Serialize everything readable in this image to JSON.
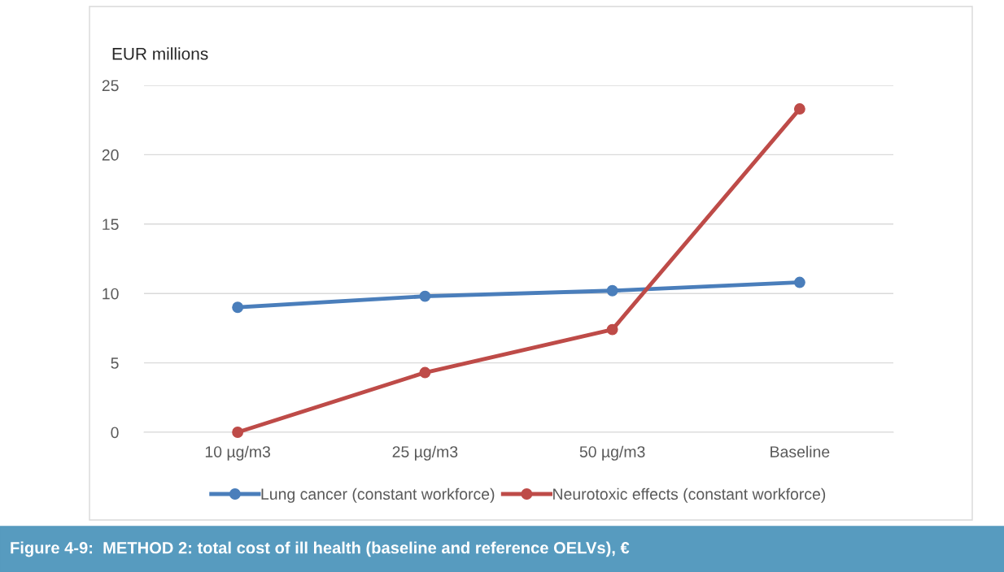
{
  "chart_data": {
    "type": "line",
    "ylabel": "EUR millions",
    "categories": [
      "10 µg/m3",
      "25 µg/m3",
      "50 µg/m3",
      "Baseline"
    ],
    "series": [
      {
        "name": "Lung cancer (constant workforce)",
        "color": "#4a7ebb",
        "values": [
          9.0,
          9.8,
          10.2,
          10.8
        ]
      },
      {
        "name": "Neurotoxic effects (constant workforce)",
        "color": "#be4b48",
        "values": [
          0.0,
          4.3,
          7.4,
          23.3
        ]
      }
    ],
    "ylim": [
      0,
      25
    ],
    "yticks": [
      0,
      5,
      10,
      15,
      20,
      25
    ],
    "grid": "y",
    "legend": "bottom",
    "marker": "circle",
    "line_style": "solid",
    "annotations": [
      "Figure 4-9:  METHOD 2: total cost of ill health (baseline and reference OELVs), €"
    ]
  }
}
